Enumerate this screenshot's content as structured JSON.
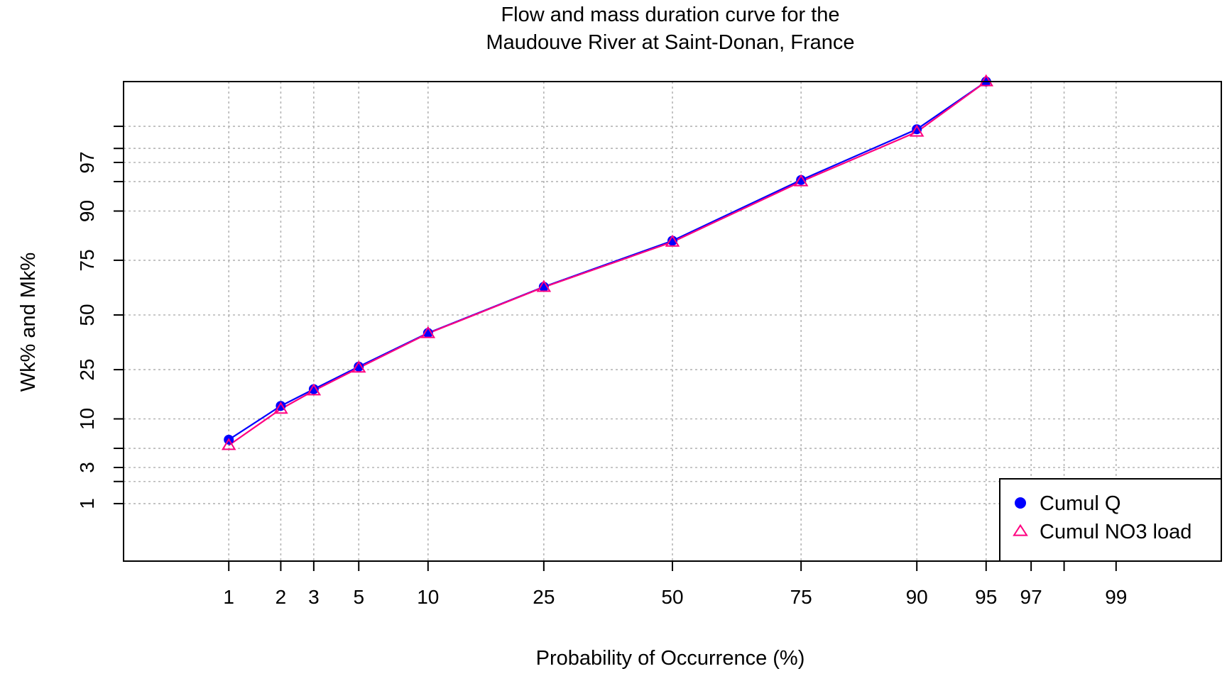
{
  "chart_data": {
    "type": "line",
    "title": "Flow and mass duration curve for the",
    "subtitle": "Maudouve River at Saint-Donan, France",
    "xlabel": "Probability of Occurrence (%)",
    "ylabel": "Wk% and Mk%",
    "x_scale": "normal-probability",
    "y_scale": "normal-probability",
    "xlim": [
      0.2,
      99.8
    ],
    "ylim": [
      0.12,
      99.8
    ],
    "x_ticks": [
      {
        "value": 1,
        "label": "1"
      },
      {
        "value": 2,
        "label": "2"
      },
      {
        "value": 3,
        "label": "3"
      },
      {
        "value": 5,
        "label": "5"
      },
      {
        "value": 10,
        "label": "10"
      },
      {
        "value": 25,
        "label": "25"
      },
      {
        "value": 50,
        "label": "50"
      },
      {
        "value": 75,
        "label": "75"
      },
      {
        "value": 90,
        "label": "90"
      },
      {
        "value": 95,
        "label": "95"
      },
      {
        "value": 97,
        "label": "97"
      },
      {
        "value": 98,
        "label": ""
      },
      {
        "value": 99,
        "label": "99"
      }
    ],
    "y_ticks": [
      {
        "value": 1,
        "label": "1"
      },
      {
        "value": 2,
        "label": ""
      },
      {
        "value": 3,
        "label": "3"
      },
      {
        "value": 5,
        "label": ""
      },
      {
        "value": 10,
        "label": "10"
      },
      {
        "value": 25,
        "label": "25"
      },
      {
        "value": 50,
        "label": "50"
      },
      {
        "value": 75,
        "label": "75"
      },
      {
        "value": 90,
        "label": "90"
      },
      {
        "value": 95,
        "label": ""
      },
      {
        "value": 97,
        "label": "97"
      },
      {
        "value": 98,
        "label": ""
      },
      {
        "value": 99,
        "label": ""
      }
    ],
    "grid": true,
    "legend_position": "bottom-right",
    "x": [
      1,
      2,
      3,
      5,
      10,
      25,
      50,
      75,
      90,
      95
    ],
    "series": [
      {
        "name": "Cumul Q",
        "marker": "filled-circle",
        "color": "#0000ff",
        "values": [
          6.2,
          13.1,
          18.0,
          26.2,
          41.2,
          63.6,
          82.0,
          95.2,
          98.9,
          99.8
        ]
      },
      {
        "name": "Cumul NO3 load",
        "marker": "open-triangle",
        "color": "#ff0080",
        "values": [
          5.4,
          12.3,
          17.5,
          25.7,
          41.0,
          63.4,
          81.6,
          95.0,
          98.8,
          99.8
        ]
      }
    ]
  }
}
